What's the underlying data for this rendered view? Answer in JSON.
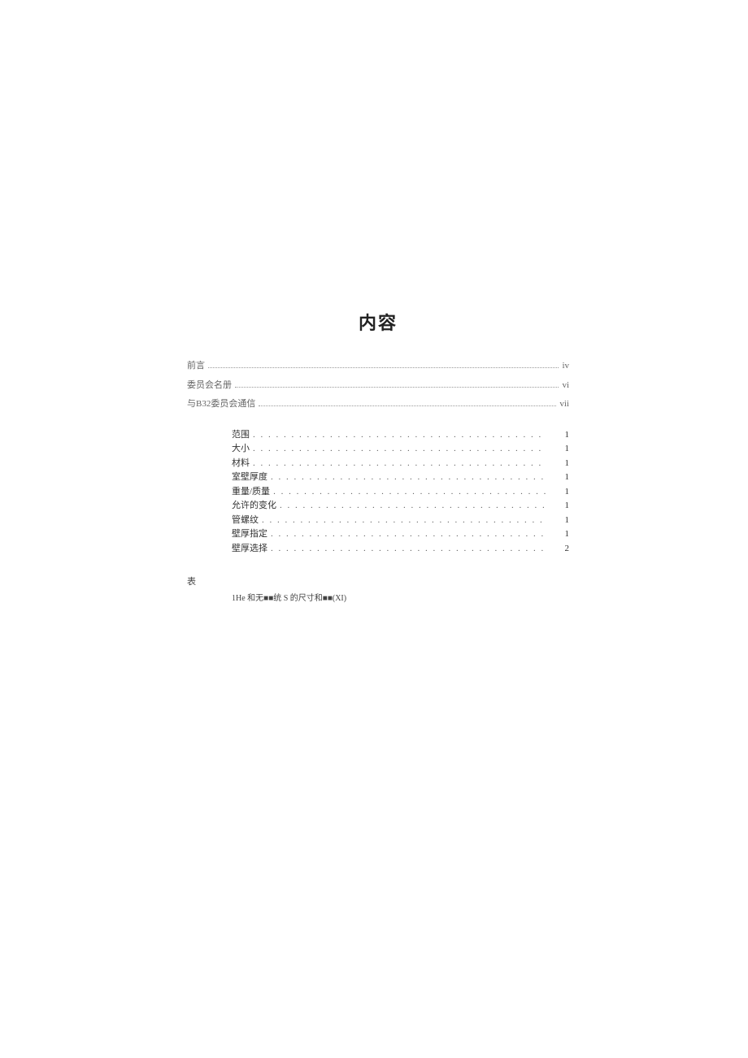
{
  "title": "内容",
  "front_matter": [
    {
      "label": "前言",
      "page": "iv"
    },
    {
      "label": "委员会名册",
      "page": "vi"
    },
    {
      "label": "与B32委员会通信",
      "page": "vii"
    }
  ],
  "main_entries": [
    {
      "label": "范围",
      "page": "1"
    },
    {
      "label": "大小",
      "page": "1"
    },
    {
      "label": "材料",
      "page": "1"
    },
    {
      "label": "室壁厚度",
      "page": "1"
    },
    {
      "label": "重量/质量",
      "page": "1"
    },
    {
      "label": "允许的变化",
      "page": "1"
    },
    {
      "label": "管螺纹",
      "page": "1"
    },
    {
      "label": "壁厚指定",
      "page": "1"
    },
    {
      "label": "壁厚选择",
      "page": "2"
    }
  ],
  "tables": {
    "heading": "表",
    "entry": "1He 和无■■统 S 的尺寸和■■(XI)"
  },
  "dots_fill": ". . . . . . . . . . . . . . . . . . . . . . . . . . . . . . . . . . . . . . . . . . . . . . . . . . . . . . . . . . . . . . . . . . . . . . . . . . . . . . . . ."
}
